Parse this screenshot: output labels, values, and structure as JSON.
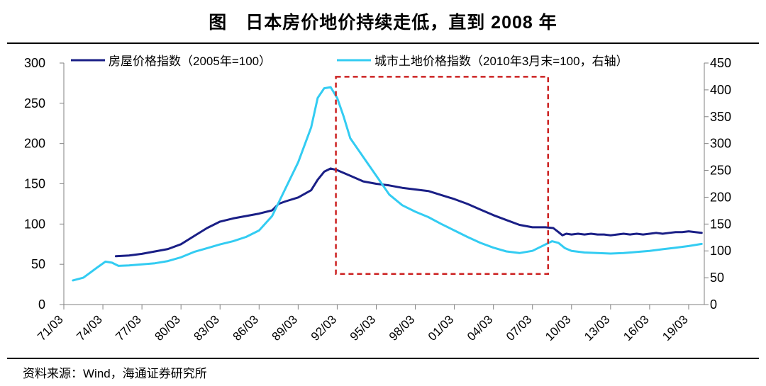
{
  "title": "图　日本房价地价持续走低，直到 2008 年",
  "source": "资料来源：Wind，海通证券研究所",
  "colors": {
    "house": "#1a1f86",
    "land": "#33ccf2",
    "highlight": "#cc2222",
    "axis": "#808080"
  },
  "chart_data": {
    "type": "line",
    "title": "日本房价地价持续走低，直到 2008 年",
    "x_start": 1971,
    "x_end": 2020.2,
    "x_ticks": [
      "71/03",
      "74/03",
      "77/03",
      "80/03",
      "83/03",
      "86/03",
      "89/03",
      "92/03",
      "95/03",
      "98/03",
      "01/03",
      "04/03",
      "07/03",
      "10/03",
      "13/03",
      "16/03",
      "19/03"
    ],
    "x_tick_years": [
      1971,
      1974,
      1977,
      1980,
      1983,
      1986,
      1989,
      1992,
      1995,
      1998,
      2001,
      2004,
      2007,
      2010,
      2013,
      2016,
      2019
    ],
    "y_left": {
      "min": 0,
      "max": 300,
      "ticks": [
        0,
        50,
        100,
        150,
        200,
        250,
        300
      ]
    },
    "y_right": {
      "min": 0,
      "max": 450,
      "ticks": [
        0,
        50,
        100,
        150,
        200,
        250,
        300,
        350,
        400,
        450
      ]
    },
    "highlight_box": {
      "x_from": 1991.9,
      "x_to": 2008.2,
      "y_from_left": 38,
      "y_to_left": 283
    },
    "series": [
      {
        "name": "房屋价格指数（2005年=100）",
        "axis": "left",
        "points": [
          [
            1975.0,
            60
          ],
          [
            1976.0,
            61
          ],
          [
            1977.0,
            63
          ],
          [
            1978.0,
            66
          ],
          [
            1979.0,
            69
          ],
          [
            1980.0,
            75
          ],
          [
            1981.0,
            85
          ],
          [
            1982.0,
            95
          ],
          [
            1983.0,
            103
          ],
          [
            1984.0,
            107
          ],
          [
            1985.0,
            110
          ],
          [
            1986.0,
            113
          ],
          [
            1987.0,
            117
          ],
          [
            1987.5,
            125
          ],
          [
            1988.0,
            128
          ],
          [
            1989.0,
            133
          ],
          [
            1990.0,
            142
          ],
          [
            1990.5,
            155
          ],
          [
            1991.0,
            165
          ],
          [
            1991.5,
            169
          ],
          [
            1992.0,
            167
          ],
          [
            1993.0,
            160
          ],
          [
            1994.0,
            153
          ],
          [
            1995.0,
            150
          ],
          [
            1996.0,
            148
          ],
          [
            1997.0,
            145
          ],
          [
            1998.0,
            143
          ],
          [
            1999.0,
            141
          ],
          [
            2000.0,
            136
          ],
          [
            2001.0,
            131
          ],
          [
            2002.0,
            125
          ],
          [
            2003.0,
            118
          ],
          [
            2004.0,
            111
          ],
          [
            2005.0,
            105
          ],
          [
            2006.0,
            99
          ],
          [
            2007.0,
            96
          ],
          [
            2008.0,
            96
          ],
          [
            2008.6,
            95
          ],
          [
            2009.0,
            90
          ],
          [
            2009.3,
            86
          ],
          [
            2009.6,
            88
          ],
          [
            2010.0,
            87
          ],
          [
            2010.5,
            88
          ],
          [
            2011.0,
            87
          ],
          [
            2011.5,
            88
          ],
          [
            2012.0,
            87
          ],
          [
            2012.5,
            87
          ],
          [
            2013.0,
            86
          ],
          [
            2013.5,
            87
          ],
          [
            2014.0,
            88
          ],
          [
            2014.5,
            87
          ],
          [
            2015.0,
            88
          ],
          [
            2015.5,
            87
          ],
          [
            2016.0,
            88
          ],
          [
            2016.5,
            89
          ],
          [
            2017.0,
            88
          ],
          [
            2017.5,
            89
          ],
          [
            2018.0,
            90
          ],
          [
            2018.5,
            90
          ],
          [
            2019.0,
            91
          ],
          [
            2019.5,
            90
          ],
          [
            2020.0,
            89
          ]
        ]
      },
      {
        "name": "城市土地价格指数（2010年3月末=100，右轴）",
        "axis": "right",
        "points": [
          [
            1971.7,
            45
          ],
          [
            1972.5,
            50
          ],
          [
            1973.5,
            68
          ],
          [
            1974.2,
            80
          ],
          [
            1974.7,
            78
          ],
          [
            1975.2,
            72
          ],
          [
            1976.0,
            73
          ],
          [
            1977.0,
            75
          ],
          [
            1978.0,
            77
          ],
          [
            1979.0,
            81
          ],
          [
            1980.0,
            88
          ],
          [
            1981.0,
            98
          ],
          [
            1982.0,
            105
          ],
          [
            1983.0,
            112
          ],
          [
            1984.0,
            118
          ],
          [
            1985.0,
            126
          ],
          [
            1986.0,
            138
          ],
          [
            1987.0,
            165
          ],
          [
            1988.0,
            215
          ],
          [
            1989.0,
            265
          ],
          [
            1990.0,
            330
          ],
          [
            1990.5,
            385
          ],
          [
            1991.0,
            403
          ],
          [
            1991.5,
            405
          ],
          [
            1992.0,
            385
          ],
          [
            1992.5,
            350
          ],
          [
            1993.0,
            310
          ],
          [
            1994.0,
            275
          ],
          [
            1995.0,
            240
          ],
          [
            1996.0,
            205
          ],
          [
            1997.0,
            185
          ],
          [
            1998.0,
            173
          ],
          [
            1999.0,
            163
          ],
          [
            2000.0,
            150
          ],
          [
            2001.0,
            138
          ],
          [
            2002.0,
            126
          ],
          [
            2003.0,
            115
          ],
          [
            2004.0,
            106
          ],
          [
            2005.0,
            99
          ],
          [
            2006.0,
            96
          ],
          [
            2007.0,
            100
          ],
          [
            2008.0,
            112
          ],
          [
            2008.5,
            118
          ],
          [
            2009.0,
            115
          ],
          [
            2009.5,
            105
          ],
          [
            2010.0,
            100
          ],
          [
            2011.0,
            97
          ],
          [
            2012.0,
            96
          ],
          [
            2013.0,
            95
          ],
          [
            2014.0,
            96
          ],
          [
            2015.0,
            98
          ],
          [
            2016.0,
            100
          ],
          [
            2017.0,
            103
          ],
          [
            2018.0,
            106
          ],
          [
            2019.0,
            109
          ],
          [
            2020.0,
            113
          ]
        ]
      }
    ]
  }
}
